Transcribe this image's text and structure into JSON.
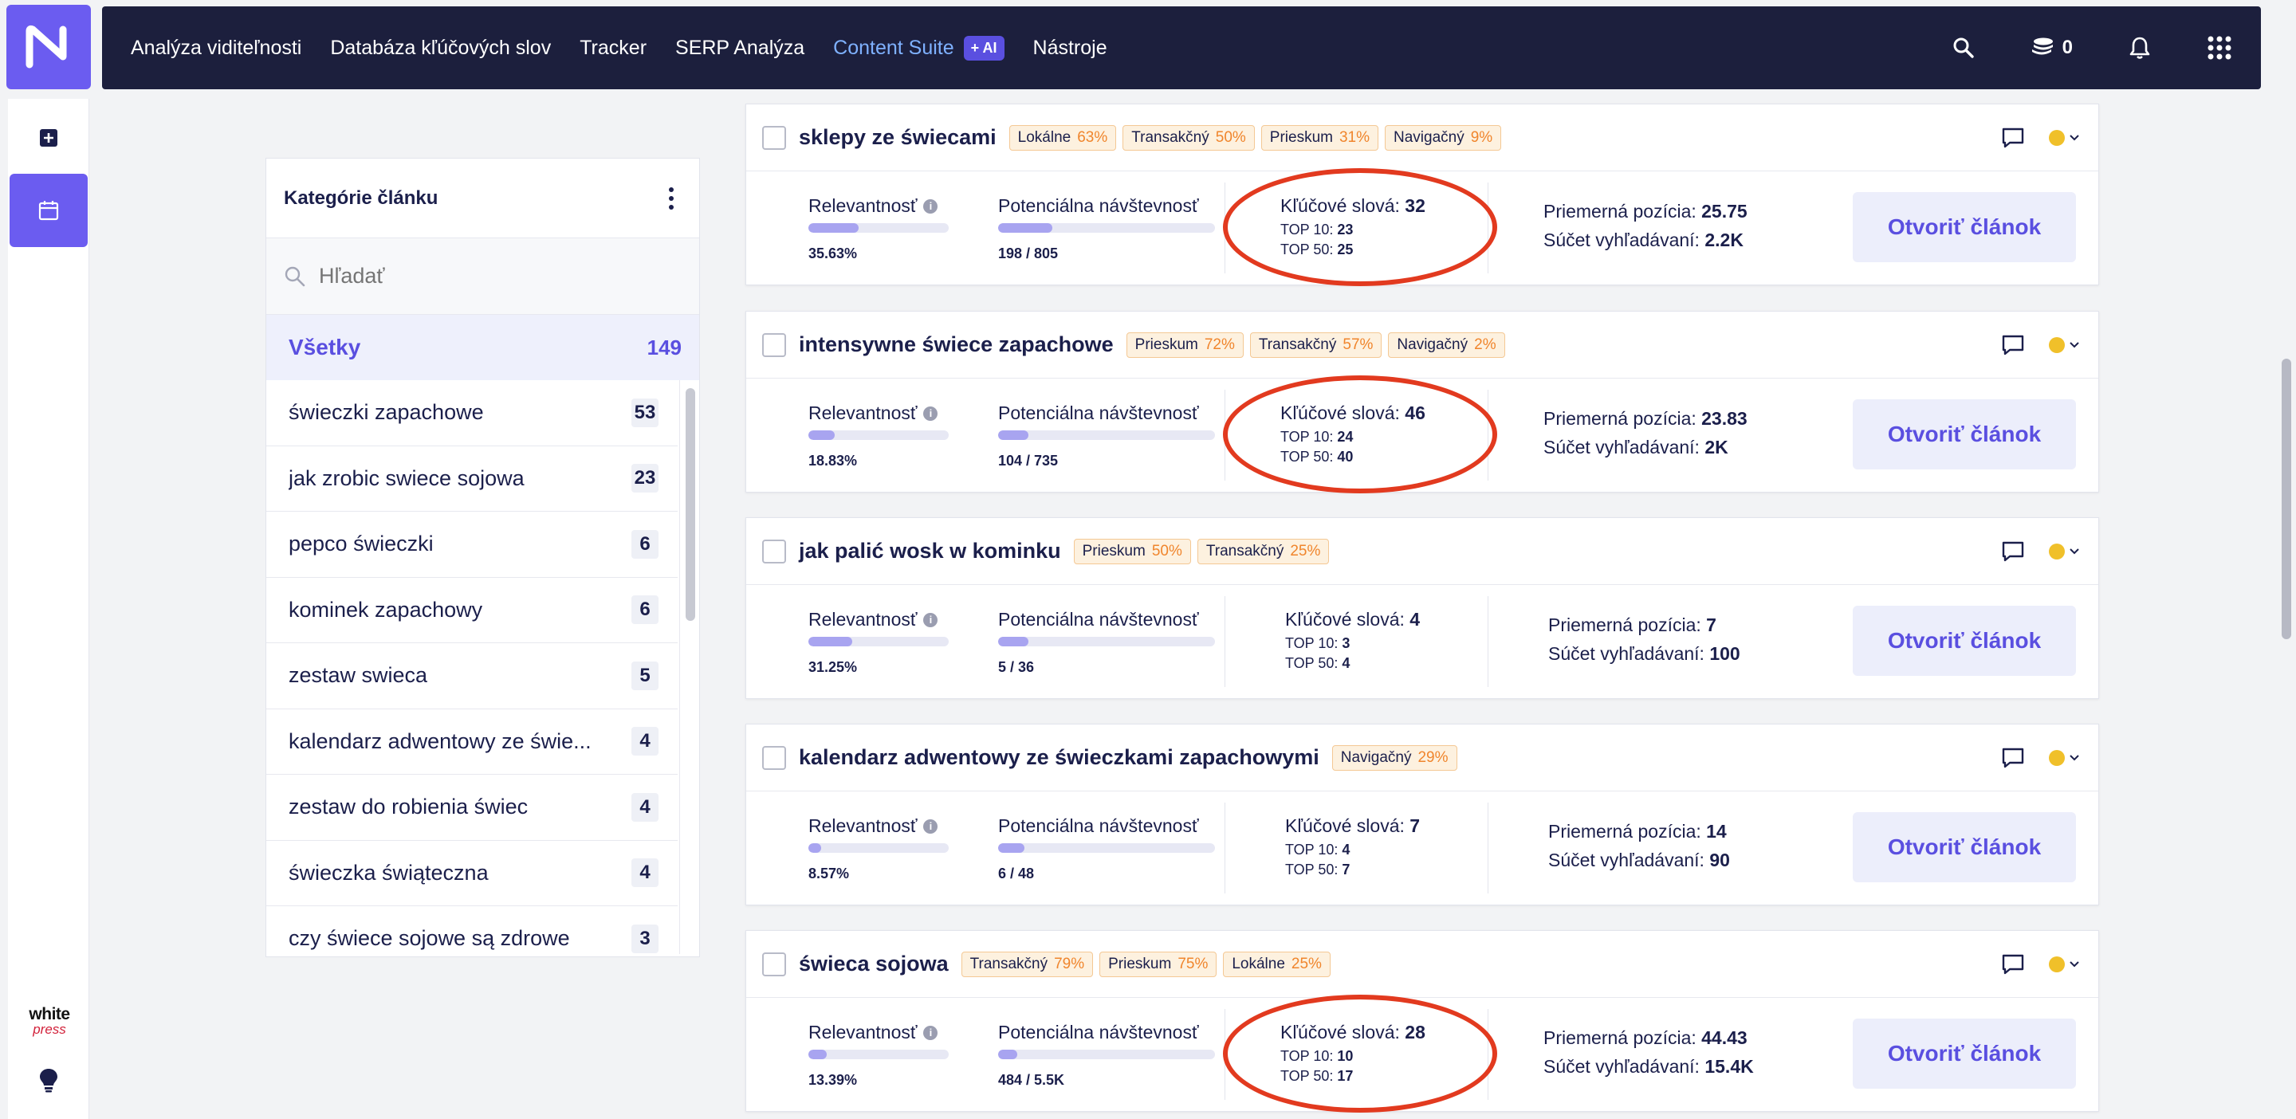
{
  "nav": {
    "items": [
      "Analýza viditeľnosti",
      "Databáza kľúčových slov",
      "Tracker",
      "SERP Analýza"
    ],
    "content_suite": "Content Suite",
    "ai_badge": "+ AI",
    "tools": "Nástroje",
    "credits": "0"
  },
  "rail": {
    "whitepress_top": "white",
    "whitepress_bottom": "press"
  },
  "categories": {
    "title": "Kategórie článku",
    "search_placeholder": "Hľadať",
    "all_label": "Všetky",
    "all_count": "149",
    "items": [
      {
        "label": "świeczki zapachowe",
        "count": "53"
      },
      {
        "label": "jak zrobic swiece sojowa",
        "count": "23"
      },
      {
        "label": "pepco świeczki",
        "count": "6"
      },
      {
        "label": "kominek zapachowy",
        "count": "6"
      },
      {
        "label": "zestaw swieca",
        "count": "5"
      },
      {
        "label": "kalendarz adwentowy ze świe...",
        "count": "4"
      },
      {
        "label": "zestaw do robienia świec",
        "count": "4"
      },
      {
        "label": "świeczka świąteczna",
        "count": "4"
      },
      {
        "label": "czy świece sojowe są zdrowe",
        "count": "3"
      }
    ]
  },
  "labels": {
    "relevance": "Relevantnosť",
    "traffic": "Potenciálna návštevnosť",
    "keywords": "Kľúčové slová:",
    "top10": "TOP 10:",
    "top50": "TOP 50:",
    "avg_pos": "Priemerná pozícia:",
    "search_sum": "Súčet vyhľadávaní:",
    "open_button": "Otvoriť článok"
  },
  "articles": [
    {
      "title": "sklepy ze świecami",
      "tags": [
        {
          "name": "Lokálne",
          "pct": "63%"
        },
        {
          "name": "Transakčný",
          "pct": "50%"
        },
        {
          "name": "Prieskum",
          "pct": "31%"
        },
        {
          "name": "Navigačný",
          "pct": "9%"
        }
      ],
      "relevance": "35.63%",
      "relevance_level": 0.36,
      "traffic": "198 / 805",
      "traffic_level": 0.25,
      "keywords": "32",
      "top10": "23",
      "top50": "25",
      "avg_position": "25.75",
      "search_sum": "2.2K",
      "highlighted": true
    },
    {
      "title": "intensywne świece zapachowe",
      "tags": [
        {
          "name": "Prieskum",
          "pct": "72%"
        },
        {
          "name": "Transakčný",
          "pct": "57%"
        },
        {
          "name": "Navigačný",
          "pct": "2%"
        }
      ],
      "relevance": "18.83%",
      "relevance_level": 0.19,
      "traffic": "104 / 735",
      "traffic_level": 0.14,
      "keywords": "46",
      "top10": "24",
      "top50": "40",
      "avg_position": "23.83",
      "search_sum": "2K",
      "highlighted": true
    },
    {
      "title": "jak palić wosk w kominku",
      "tags": [
        {
          "name": "Prieskum",
          "pct": "50%"
        },
        {
          "name": "Transakčný",
          "pct": "25%"
        }
      ],
      "relevance": "31.25%",
      "relevance_level": 0.31,
      "traffic": "5 / 36",
      "traffic_level": 0.14,
      "keywords": "4",
      "top10": "3",
      "top50": "4",
      "avg_position": "7",
      "search_sum": "100",
      "highlighted": false
    },
    {
      "title": "kalendarz adwentowy ze świeczkami zapachowymi",
      "tags": [
        {
          "name": "Navigačný",
          "pct": "29%"
        }
      ],
      "relevance": "8.57%",
      "relevance_level": 0.09,
      "traffic": "6 / 48",
      "traffic_level": 0.12,
      "keywords": "7",
      "top10": "4",
      "top50": "7",
      "avg_position": "14",
      "search_sum": "90",
      "highlighted": false
    },
    {
      "title": "świeca sojowa",
      "tags": [
        {
          "name": "Transakčný",
          "pct": "79%"
        },
        {
          "name": "Prieskum",
          "pct": "75%"
        },
        {
          "name": "Lokálne",
          "pct": "25%"
        }
      ],
      "relevance": "13.39%",
      "relevance_level": 0.13,
      "traffic": "484 / 5.5K",
      "traffic_level": 0.09,
      "keywords": "28",
      "top10": "10",
      "top50": "17",
      "avg_position": "44.43",
      "search_sum": "15.4K",
      "highlighted": true
    }
  ],
  "colors": {
    "accent": "#5a4fe0",
    "navbar": "#1c1f3d",
    "tag_pct": "#f0852c",
    "highlight_ring": "#e23a1f"
  }
}
